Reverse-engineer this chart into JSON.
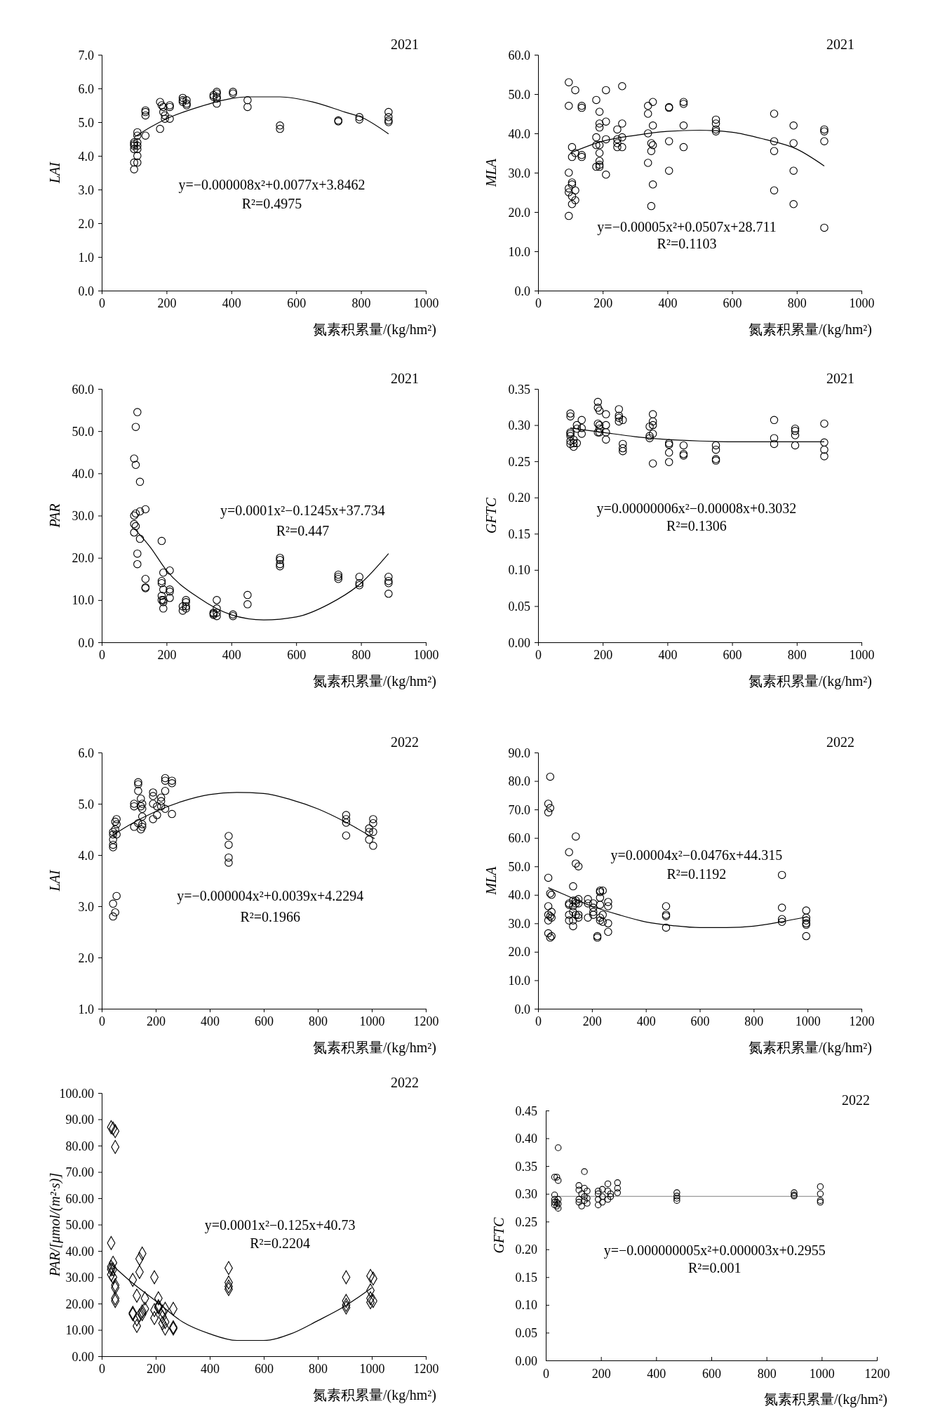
{
  "chart_data": [
    {
      "type": "scatter",
      "ylabel": "LAI",
      "xlabel": "氮素积累量/(kg/hm²)",
      "xlim": [
        0,
        1000
      ],
      "xticks": [
        0,
        200,
        400,
        600,
        800,
        1000
      ],
      "ylim": [
        0,
        7
      ],
      "yticks": [
        {
          "value": 0,
          "label": "0.0"
        },
        {
          "value": 1,
          "label": "1.0"
        },
        {
          "value": 2,
          "label": "2.0"
        },
        {
          "value": 3,
          "label": "3.0"
        },
        {
          "value": 4,
          "label": "4.0"
        },
        {
          "value": 5,
          "label": "5.0"
        },
        {
          "value": 6,
          "label": "6.0"
        },
        {
          "value": 7,
          "label": "7.0"
        }
      ],
      "marker": "circle",
      "grid": false,
      "annotations": [
        "2021",
        "y=−0.000008x²+0.0077x+3.8462",
        "R²=0.4975"
      ],
      "series": [
        {
          "color": "#000000",
          "x": [
            100,
            100,
            100,
            100,
            100,
            100,
            110,
            110,
            110,
            110,
            110,
            110,
            110,
            135,
            135,
            135,
            135,
            180,
            185,
            190,
            190,
            195,
            195,
            180,
            210,
            210,
            210,
            250,
            250,
            250,
            262,
            262,
            262,
            345,
            345,
            355,
            355,
            355,
            355,
            355,
            405,
            405,
            450,
            450,
            550,
            550,
            730,
            730,
            795,
            795,
            885,
            885,
            885,
            885
          ],
          "values": [
            4.4,
            4.35,
            4.3,
            4.2,
            3.8,
            3.6,
            4.7,
            4.6,
            4.4,
            4.3,
            4.2,
            4.0,
            3.8,
            5.35,
            5.3,
            5.2,
            4.6,
            5.6,
            5.5,
            5.45,
            5.3,
            5.2,
            5.1,
            4.8,
            5.5,
            5.45,
            5.1,
            5.72,
            5.65,
            5.6,
            5.65,
            5.55,
            5.5,
            5.8,
            5.75,
            5.9,
            5.85,
            5.75,
            5.7,
            5.55,
            5.9,
            5.85,
            5.65,
            5.45,
            4.9,
            4.8,
            5.05,
            5.02,
            5.15,
            5.08,
            5.3,
            5.15,
            5.05,
            5.0
          ]
        },
        {
          "type": "line",
          "color": "#000000",
          "marker": "none",
          "x": [
            100,
            150,
            200,
            300,
            400,
            450,
            550,
            650,
            750,
            800,
            885
          ],
          "values": [
            4.55,
            4.85,
            5.1,
            5.45,
            5.7,
            5.75,
            5.75,
            5.6,
            5.3,
            5.15,
            4.65
          ]
        }
      ]
    },
    {
      "type": "scatter",
      "ylabel": "MLA",
      "xlabel": "氮素积累量/(kg/hm²)",
      "xlim": [
        0,
        1000
      ],
      "xticks": [
        0,
        200,
        400,
        600,
        800,
        1000
      ],
      "ylim": [
        0,
        60
      ],
      "yticks": [
        {
          "value": 0,
          "label": "0.0"
        },
        {
          "value": 10,
          "label": "10.0"
        },
        {
          "value": 20,
          "label": "20.0"
        },
        {
          "value": 30,
          "label": "30.0"
        },
        {
          "value": 40,
          "label": "40.0"
        },
        {
          "value": 50,
          "label": "50.0"
        },
        {
          "value": 60,
          "label": "60.0"
        }
      ],
      "marker": "circle",
      "grid": false,
      "annotations": [
        "2021",
        "y=−0.00005x²+0.0507x+28.711",
        "R²=0.1103"
      ],
      "series": [
        {
          "color": "#000000",
          "x": [
            95,
            95,
            95,
            95,
            95,
            95,
            105,
            105,
            105,
            105,
            105,
            105,
            115,
            115,
            115,
            115,
            135,
            135,
            135,
            135,
            180,
            180,
            180,
            180,
            190,
            190,
            190,
            190,
            190,
            190,
            190,
            190,
            210,
            210,
            210,
            210,
            245,
            245,
            245,
            245,
            260,
            260,
            260,
            260,
            340,
            340,
            340,
            340,
            350,
            350,
            350,
            355,
            355,
            355,
            355,
            405,
            405,
            405,
            405,
            450,
            450,
            450,
            450,
            550,
            550,
            550,
            550,
            730,
            730,
            730,
            730,
            790,
            790,
            790,
            790,
            885,
            885,
            885,
            885
          ],
          "values": [
            53,
            47,
            30,
            26,
            25,
            19,
            34,
            36.5,
            27.5,
            24,
            22,
            27,
            51,
            35,
            25.5,
            23,
            47,
            46.5,
            34.5,
            34,
            48.5,
            39,
            37,
            31.5,
            45.5,
            42.5,
            41.5,
            37,
            35,
            33,
            32,
            31.5,
            51,
            43,
            38.5,
            29.5,
            41,
            38.5,
            37.5,
            36.5,
            52,
            42.5,
            39,
            36.5,
            47,
            45,
            40,
            32.5,
            37.5,
            35.5,
            21.5,
            48,
            42,
            37,
            27,
            46.5,
            46.7,
            38,
            30.5,
            47.5,
            48,
            42,
            36.5,
            43.5,
            42.5,
            41,
            40.5,
            45,
            38,
            35.5,
            25.5,
            42,
            37.5,
            30.5,
            22,
            41,
            40.5,
            38,
            16
          ]
        },
        {
          "type": "line",
          "color": "#000000",
          "marker": "none",
          "x": [
            100,
            200,
            300,
            400,
            500,
            600,
            700,
            800,
            885
          ],
          "values": [
            35,
            38,
            39.5,
            40.5,
            40.8,
            40.3,
            38.5,
            36,
            31.7
          ]
        }
      ]
    },
    {
      "type": "scatter",
      "ylabel": "PAR",
      "xlabel": "氮素积累量/(kg/hm²)",
      "xlim": [
        0,
        1000
      ],
      "xticks": [
        0,
        200,
        400,
        600,
        800,
        1000
      ],
      "ylim": [
        0,
        60
      ],
      "yticks": [
        {
          "value": 0,
          "label": "0.0"
        },
        {
          "value": 10,
          "label": "10.0"
        },
        {
          "value": 20,
          "label": "20.0"
        },
        {
          "value": 30,
          "label": "30.0"
        },
        {
          "value": 40,
          "label": "40.0"
        },
        {
          "value": 50,
          "label": "50.0"
        },
        {
          "value": 60,
          "label": "60.0"
        }
      ],
      "marker": "circle",
      "grid": false,
      "annotations": [
        "2021",
        "y=0.0001x²−0.1245x+37.734",
        "R²=0.447"
      ],
      "series": [
        {
          "color": "#000000",
          "x": [
            100,
            100,
            100,
            100,
            105,
            105,
            105,
            105,
            110,
            110,
            110,
            118,
            118,
            118,
            135,
            135,
            135,
            135,
            185,
            185,
            185,
            185,
            185,
            190,
            190,
            190,
            190,
            190,
            210,
            210,
            210,
            210,
            250,
            250,
            260,
            260,
            260,
            260,
            345,
            345,
            345,
            355,
            355,
            355,
            355,
            405,
            405,
            450,
            450,
            550,
            550,
            550,
            550,
            730,
            730,
            730,
            795,
            795,
            795,
            885,
            885,
            885,
            885
          ],
          "values": [
            43.5,
            30,
            28,
            26,
            51,
            42,
            30.5,
            27.5,
            54.5,
            21,
            18.5,
            38,
            31,
            24.5,
            31.5,
            15,
            13,
            12.8,
            24,
            14.5,
            14,
            11,
            10,
            16.5,
            12.5,
            10,
            9.5,
            8,
            17,
            12.5,
            12,
            10.5,
            8.5,
            7.5,
            10,
            9.5,
            8.5,
            8,
            7,
            6.8,
            6.5,
            10,
            8,
            7,
            6.2,
            6.6,
            6.2,
            11.2,
            9,
            20,
            19.5,
            18.5,
            18,
            16,
            15.5,
            15,
            15.5,
            14,
            13.5,
            15.5,
            14.5,
            14,
            11.5
          ]
        },
        {
          "type": "line",
          "color": "#000000",
          "marker": "none",
          "x": [
            100,
            150,
            200,
            300,
            400,
            500,
            600,
            700,
            800,
            885
          ],
          "values": [
            27,
            22.5,
            17,
            10.5,
            6.5,
            5.3,
            6,
            9,
            14,
            21
          ]
        }
      ]
    },
    {
      "type": "scatter",
      "ylabel": "GFTC",
      "xlabel": "氮素积累量/(kg/hm²)",
      "xlim": [
        0,
        1000
      ],
      "xticks": [
        0,
        200,
        400,
        600,
        800,
        1000
      ],
      "ylim": [
        0,
        0.35
      ],
      "yticks": [
        {
          "value": 0,
          "label": "0.00"
        },
        0.05,
        {
          "value": 0.1,
          "label": "0.10"
        },
        0.15,
        {
          "value": 0.2,
          "label": "0.20"
        },
        0.25,
        {
          "value": 0.3,
          "label": "0.30"
        },
        0.35
      ],
      "marker": "circle",
      "grid": false,
      "annotations": [
        "2021",
        "y=0.00000006x²−0.00008x+0.3032",
        "R²=0.1306"
      ],
      "series": [
        {
          "color": "#000000",
          "x": [
            100,
            100,
            100,
            100,
            100,
            100,
            100,
            110,
            110,
            110,
            120,
            120,
            120,
            135,
            135,
            135,
            185,
            185,
            185,
            185,
            190,
            190,
            190,
            190,
            210,
            210,
            210,
            210,
            250,
            250,
            250,
            250,
            262,
            262,
            262,
            262,
            345,
            345,
            345,
            355,
            355,
            355,
            355,
            355,
            405,
            405,
            405,
            405,
            450,
            450,
            450,
            550,
            550,
            550,
            550,
            730,
            730,
            730,
            795,
            795,
            795,
            795,
            885,
            885,
            885,
            885
          ],
          "values": [
            0.316,
            0.312,
            0.29,
            0.288,
            0.285,
            0.278,
            0.274,
            0.28,
            0.275,
            0.27,
            0.3,
            0.295,
            0.275,
            0.307,
            0.296,
            0.288,
            0.332,
            0.324,
            0.302,
            0.29,
            0.32,
            0.3,
            0.295,
            0.29,
            0.315,
            0.3,
            0.29,
            0.28,
            0.322,
            0.313,
            0.31,
            0.305,
            0.307,
            0.274,
            0.268,
            0.264,
            0.298,
            0.285,
            0.282,
            0.315,
            0.305,
            0.3,
            0.288,
            0.247,
            0.275,
            0.273,
            0.262,
            0.249,
            0.272,
            0.26,
            0.258,
            0.272,
            0.266,
            0.253,
            0.251,
            0.307,
            0.282,
            0.274,
            0.295,
            0.292,
            0.286,
            0.272,
            0.302,
            0.276,
            0.266,
            0.257
          ]
        },
        {
          "type": "line",
          "color": "#000000",
          "marker": "none",
          "x": [
            100,
            200,
            300,
            400,
            500,
            600,
            700,
            800,
            885
          ],
          "values": [
            0.296,
            0.29,
            0.284,
            0.28,
            0.278,
            0.277,
            0.277,
            0.277,
            0.277
          ]
        }
      ]
    },
    {
      "type": "scatter",
      "ylabel": "LAI",
      "xlabel": "氮素积累量/(kg/hm²)",
      "xlim": [
        0,
        1200
      ],
      "xticks": [
        0,
        200,
        400,
        600,
        800,
        1000,
        1200
      ],
      "ylim": [
        1,
        6
      ],
      "yticks": [
        {
          "value": 1,
          "label": "1.0"
        },
        {
          "value": 2,
          "label": "2.0"
        },
        {
          "value": 3,
          "label": "3.0"
        },
        {
          "value": 4,
          "label": "4.0"
        },
        {
          "value": 5,
          "label": "5.0"
        },
        {
          "value": 6,
          "label": "6.0"
        }
      ],
      "marker": "circle",
      "grid": false,
      "annotations": [
        "2022",
        "y=−0.000004x²+0.0039x+4.2294",
        "R²=0.1966"
      ],
      "series": [
        {
          "color": "#000000",
          "x": [
            42,
            42,
            42,
            42,
            42,
            42,
            42,
            50,
            50,
            50,
            55,
            55,
            55,
            55,
            120,
            120,
            120,
            135,
            135,
            135,
            135,
            145,
            145,
            145,
            150,
            150,
            150,
            150,
            150,
            190,
            190,
            190,
            190,
            205,
            205,
            220,
            220,
            220,
            235,
            235,
            235,
            235,
            260,
            260,
            260,
            470,
            470,
            470,
            470,
            905,
            905,
            905,
            905,
            990,
            990,
            990,
            1005,
            1005,
            1005,
            1005
          ],
          "values": [
            4.45,
            4.4,
            4.3,
            4.2,
            4.15,
            3.05,
            2.8,
            4.65,
            4.5,
            2.88,
            4.7,
            4.6,
            4.4,
            3.2,
            5.0,
            4.95,
            4.55,
            5.42,
            5.38,
            5.25,
            4.62,
            5.1,
            4.95,
            4.5,
            5.0,
            4.9,
            4.75,
            4.6,
            4.55,
            5.22,
            5.15,
            5.0,
            4.7,
            4.95,
            4.78,
            5.12,
            5.05,
            4.95,
            5.5,
            5.45,
            5.25,
            4.9,
            5.45,
            5.4,
            4.8,
            4.37,
            4.2,
            3.95,
            3.85,
            4.78,
            4.7,
            4.63,
            4.38,
            4.52,
            4.45,
            4.3,
            4.7,
            4.62,
            4.45,
            4.18
          ]
        },
        {
          "type": "line",
          "color": "#000000",
          "marker": "none",
          "x": [
            42,
            100,
            200,
            300,
            400,
            500,
            600,
            700,
            800,
            900,
            1010
          ],
          "values": [
            4.39,
            4.58,
            4.85,
            5.05,
            5.18,
            5.22,
            5.2,
            5.08,
            4.9,
            4.65,
            4.32
          ]
        }
      ]
    },
    {
      "type": "scatter",
      "ylabel": "MLA",
      "xlabel": "氮素积累量/(kg/hm²)",
      "xlim": [
        0,
        1200
      ],
      "xticks": [
        0,
        200,
        400,
        600,
        800,
        1000,
        1200
      ],
      "ylim": [
        0,
        90
      ],
      "yticks": [
        {
          "value": 0,
          "label": "0.0"
        },
        {
          "value": 10,
          "label": "10.0"
        },
        {
          "value": 20,
          "label": "20.0"
        },
        {
          "value": 30,
          "label": "30.0"
        },
        {
          "value": 40,
          "label": "40.0"
        },
        {
          "value": 50,
          "label": "50.0"
        },
        {
          "value": 60,
          "label": "60.0"
        },
        {
          "value": 70,
          "label": "70.0"
        },
        {
          "value": 80,
          "label": "80.0"
        },
        {
          "value": 90,
          "label": "90.0"
        }
      ],
      "marker": "circle",
      "grid": false,
      "annotations": [
        "2022",
        "y=0.00004x²−0.0476x+44.315",
        "R²=0.1192"
      ],
      "series": [
        {
          "color": "#000000",
          "x": [
            38,
            38,
            38,
            38,
            38,
            38,
            38,
            45,
            45,
            45,
            45,
            45,
            50,
            50,
            50,
            50,
            115,
            115,
            115,
            115,
            115,
            130,
            130,
            130,
            130,
            130,
            130,
            140,
            140,
            140,
            140,
            140,
            150,
            150,
            150,
            150,
            150,
            185,
            185,
            185,
            205,
            205,
            205,
            205,
            220,
            220,
            230,
            230,
            230,
            230,
            230,
            230,
            240,
            240,
            240,
            260,
            260,
            260,
            260,
            475,
            475,
            475,
            475,
            905,
            905,
            905,
            905,
            995,
            995,
            995,
            995,
            995,
            995
          ],
          "values": [
            72,
            69,
            46,
            36,
            33,
            31,
            26.5,
            81.5,
            70.5,
            40.5,
            32.5,
            25,
            40,
            34,
            32,
            25.5,
            55,
            37,
            36.5,
            33,
            31,
            43,
            38,
            36,
            34,
            31,
            29,
            60.5,
            51,
            38,
            37,
            33,
            50,
            38.5,
            37,
            33,
            32,
            38.5,
            37,
            32,
            37,
            35.5,
            34,
            33,
            25.5,
            25,
            41.5,
            41,
            39,
            36.5,
            32,
            31,
            41.5,
            33,
            30.5,
            37.5,
            36,
            30,
            27,
            36,
            33,
            32.5,
            28.5,
            47,
            35.5,
            31.5,
            30.5,
            34.5,
            32,
            31,
            30,
            29.5,
            25.5
          ]
        },
        {
          "type": "line",
          "color": "#000000",
          "marker": "none",
          "x": [
            38,
            100,
            200,
            300,
            400,
            500,
            600,
            700,
            800,
            900,
            1000
          ],
          "values": [
            42.5,
            40,
            36,
            33,
            30.5,
            29.2,
            28.5,
            28.5,
            29,
            30.5,
            32.3
          ]
        }
      ]
    },
    {
      "type": "scatter",
      "ylabel": "PAR/[μmol/(m²·s)]",
      "xlabel": "氮素积累量/(kg/hm²)",
      "xlim": [
        0,
        1200
      ],
      "xticks": [
        0,
        200,
        400,
        600,
        800,
        1000,
        1200
      ],
      "ylim": [
        0,
        100
      ],
      "yticks": [
        {
          "value": 0,
          "label": "0.00"
        },
        {
          "value": 10,
          "label": "10.00"
        },
        {
          "value": 20,
          "label": "20.00"
        },
        {
          "value": 30,
          "label": "30.00"
        },
        {
          "value": 40,
          "label": "40.00"
        },
        {
          "value": 50,
          "label": "50.00"
        },
        {
          "value": 60,
          "label": "60.00"
        },
        {
          "value": 70,
          "label": "70.00"
        },
        {
          "value": 80,
          "label": "80.00"
        },
        {
          "value": 90,
          "label": "90.00"
        },
        {
          "value": 100,
          "label": "100.00"
        }
      ],
      "marker": "diamond",
      "grid": false,
      "annotations": [
        "2022",
        "y=0.0001x²−0.125x+40.73",
        "R²=0.2204"
      ],
      "series": [
        {
          "color": "#000000",
          "x": [
            35,
            35,
            35,
            35,
            35,
            42,
            42,
            42,
            42,
            50,
            50,
            50,
            50,
            50,
            50,
            115,
            115,
            115,
            130,
            130,
            130,
            140,
            140,
            140,
            150,
            150,
            150,
            160,
            160,
            195,
            195,
            195,
            210,
            210,
            210,
            225,
            225,
            225,
            235,
            235,
            235,
            265,
            265,
            265,
            470,
            470,
            470,
            470,
            905,
            905,
            905,
            905,
            995,
            995,
            995,
            995,
            1005,
            1005
          ],
          "values": [
            87,
            43,
            34,
            33,
            31,
            86.5,
            35.5,
            33,
            30,
            85.5,
            79.5,
            27,
            26,
            22,
            21,
            29,
            16.5,
            16,
            23,
            14,
            11.5,
            37,
            32,
            15.5,
            39,
            17,
            16,
            22,
            18,
            30,
            17.5,
            14.5,
            22,
            19,
            18.5,
            17,
            15,
            12.5,
            18,
            13,
            10.5,
            18,
            11,
            10.5,
            33.5,
            28,
            26.5,
            25.5,
            30,
            21,
            19.5,
            18.5,
            30.5,
            25,
            22,
            20.5,
            29.5,
            21
          ]
        },
        {
          "type": "line",
          "color": "#000000",
          "marker": "none",
          "x": [
            35,
            100,
            200,
            300,
            400,
            500,
            600,
            700,
            800,
            900,
            1000
          ],
          "values": [
            35,
            29,
            21,
            13,
            8.5,
            6,
            6,
            8.5,
            13.5,
            19,
            26
          ]
        }
      ]
    },
    {
      "type": "scatter",
      "ylabel": "GFTC",
      "xlabel": "氮素积累量/(kg/hm²)",
      "xlim": [
        0,
        1200
      ],
      "xticks": [
        0,
        200,
        400,
        600,
        800,
        1000,
        1200
      ],
      "ylim": [
        0,
        0.45
      ],
      "yticks": [
        {
          "value": 0,
          "label": "0.00"
        },
        0.05,
        {
          "value": 0.1,
          "label": "0.10"
        },
        0.15,
        {
          "value": 0.2,
          "label": "0.20"
        },
        0.25,
        {
          "value": 0.3,
          "label": "0.30"
        },
        0.35,
        {
          "value": 0.4,
          "label": "0.40"
        },
        0.45
      ],
      "marker": "circle",
      "grid": false,
      "annotations": [
        "2022",
        "y=−0.000000005x²+0.000003x+0.2955",
        "R²=0.001"
      ],
      "series": [
        {
          "color": "#000000",
          "x": [
            32,
            32,
            32,
            32,
            32,
            40,
            40,
            40,
            45,
            45,
            45,
            45,
            45,
            120,
            120,
            120,
            120,
            130,
            130,
            140,
            140,
            140,
            140,
            150,
            150,
            150,
            190,
            190,
            190,
            190,
            205,
            205,
            205,
            225,
            225,
            225,
            235,
            235,
            260,
            260,
            260,
            475,
            475,
            475,
            475,
            900,
            900,
            900,
            995,
            995,
            995,
            995
          ],
          "values": [
            0.33,
            0.298,
            0.29,
            0.285,
            0.28,
            0.33,
            0.285,
            0.278,
            0.383,
            0.324,
            0.29,
            0.282,
            0.274,
            0.315,
            0.307,
            0.29,
            0.285,
            0.3,
            0.278,
            0.34,
            0.31,
            0.295,
            0.288,
            0.305,
            0.292,
            0.283,
            0.305,
            0.3,
            0.29,
            0.28,
            0.308,
            0.295,
            0.285,
            0.318,
            0.305,
            0.29,
            0.3,
            0.295,
            0.32,
            0.31,
            0.302,
            0.302,
            0.296,
            0.292,
            0.288,
            0.302,
            0.298,
            0.296,
            0.313,
            0.3,
            0.288,
            0.285
          ]
        },
        {
          "type": "line",
          "color": "#808080",
          "marker": "none",
          "x": [
            30,
            500,
            1000
          ],
          "values": [
            0.2955,
            0.2955,
            0.2955
          ]
        }
      ]
    }
  ]
}
